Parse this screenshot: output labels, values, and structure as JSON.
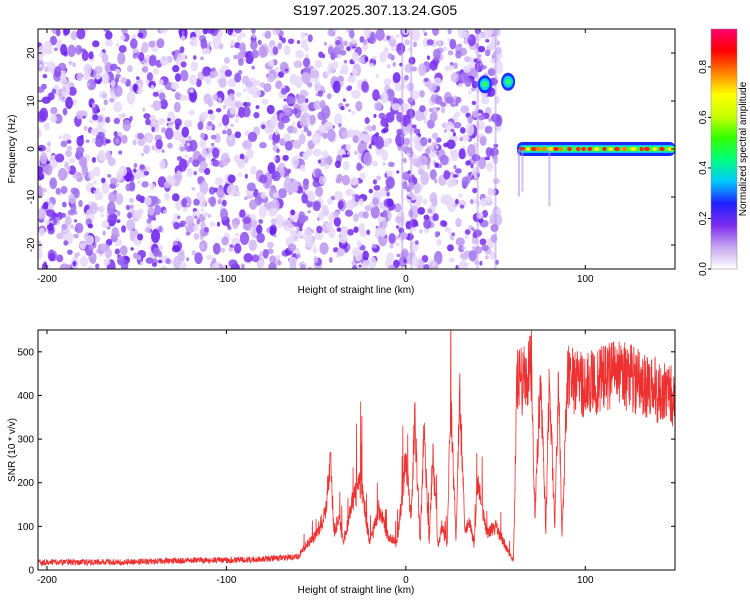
{
  "title": "S197.2025.307.13.24.G05",
  "chart_data": [
    {
      "type": "heatmap",
      "title": "S197.2025.307.13.24.G05",
      "xlabel": "Height of straight line (km)",
      "ylabel": "Frequency (Hz)",
      "xlim": [
        -205,
        150
      ],
      "ylim": [
        -25,
        25
      ],
      "x_ticks": [
        -200,
        -100,
        0,
        100
      ],
      "y_ticks": [
        -20,
        -10,
        0,
        10,
        20
      ],
      "colorbar": {
        "label": "Normalized spectral amplitude",
        "range": [
          0,
          0.95
        ],
        "ticks": [
          0.0,
          0.2,
          0.4,
          0.6,
          0.8
        ],
        "colors": [
          "#ffffff",
          "#c8a8f0",
          "#7c2cf0",
          "#2020ff",
          "#00c8ff",
          "#00ff80",
          "#30ff00",
          "#c8ff00",
          "#ffff00",
          "#ff8000",
          "#ff0000",
          "#ff0070"
        ]
      },
      "regions": [
        {
          "name": "noise",
          "x_range": [
            -205,
            52
          ],
          "freq_range": [
            -25,
            25
          ],
          "amplitude": 0.1
        },
        {
          "name": "tone-peak-1",
          "x": 44,
          "freq": 13.5,
          "amplitude": 0.45
        },
        {
          "name": "tone-peak-2",
          "x": 57,
          "freq": 14,
          "amplitude": 0.45
        },
        {
          "name": "carrier-line",
          "x_range": [
            62,
            150
          ],
          "freq": 0,
          "amplitude": 0.9
        }
      ]
    },
    {
      "type": "line",
      "xlabel": "Height of straight line (km)",
      "ylabel": "SNR (10 * v/v)",
      "xlim": [
        -205,
        150
      ],
      "ylim": [
        0,
        550
      ],
      "x_ticks": [
        -200,
        -100,
        0,
        100
      ],
      "y_ticks": [
        0,
        100,
        200,
        300,
        400,
        500
      ],
      "series": [
        {
          "name": "SNR",
          "color": "#ee3030",
          "x": [
            -205,
            -180,
            -160,
            -140,
            -120,
            -100,
            -80,
            -60,
            -55,
            -50,
            -45,
            -42,
            -40,
            -37,
            -35,
            -30,
            -25,
            -20,
            -15,
            -10,
            -5,
            0,
            3,
            5,
            8,
            10,
            13,
            15,
            18,
            20,
            23,
            25,
            28,
            30,
            33,
            35,
            38,
            40,
            45,
            50,
            55,
            60,
            62,
            65,
            70,
            72,
            75,
            78,
            80,
            83,
            85,
            87,
            90,
            100,
            110,
            120,
            130,
            140,
            150
          ],
          "values": [
            18,
            18,
            18,
            20,
            22,
            22,
            25,
            30,
            60,
            80,
            130,
            250,
            90,
            120,
            60,
            150,
            200,
            60,
            140,
            80,
            60,
            250,
            120,
            350,
            60,
            320,
            60,
            270,
            50,
            100,
            60,
            380,
            70,
            400,
            80,
            120,
            60,
            200,
            80,
            100,
            60,
            20,
            450,
            430,
            470,
            120,
            440,
            90,
            450,
            100,
            430,
            80,
            440,
            420,
            440,
            450,
            430,
            410,
            400
          ]
        }
      ]
    }
  ]
}
